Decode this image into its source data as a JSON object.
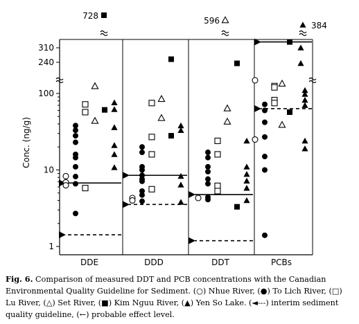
{
  "chart_data": {
    "type": "scatter",
    "ylabel": "Conc. (ng/g)",
    "yscale": "log",
    "ylim": [
      1,
      150
    ],
    "yticks": [
      "1",
      "10",
      "100"
    ],
    "upper_axis_ticks": [
      "240",
      "310"
    ],
    "categories": [
      "DDE",
      "DDD",
      "DDT",
      "PCBs"
    ],
    "series": [
      {
        "marker": "open-circle",
        "values": {
          "DDE": [
            8.3,
            6.9,
            6.3
          ],
          "DDD": [
            4.3,
            4.0
          ],
          "DDT": [
            4.3
          ],
          "PCBs": [
            160,
            25
          ]
        }
      },
      {
        "marker": "filled-circle",
        "values": {
          "DDE": [
            38,
            33,
            28,
            23,
            16,
            14.5,
            11,
            8.2,
            6.6,
            2.7
          ],
          "DDD": [
            20,
            17,
            11,
            10,
            8.5,
            7.6,
            7.1,
            5.3,
            4.7,
            3.9
          ],
          "DDT": [
            17,
            14.5,
            11,
            9.5,
            7.6,
            6.6,
            4.4,
            4.1
          ],
          "PCBs": [
            72,
            60,
            42,
            27,
            15,
            10,
            1.4
          ]
        }
      },
      {
        "marker": "open-square",
        "values": {
          "DDE": [
            72,
            57,
            5.8
          ],
          "DDD": [
            75,
            27,
            16,
            5.6
          ],
          "DDT": [
            24,
            16,
            6.2,
            5.3
          ],
          "PCBs": [
            125,
            120,
            82,
            75
          ]
        }
      },
      {
        "marker": "open-triangle",
        "values": {
          "DDE": [
            125,
            44
          ],
          "DDD": [
            85,
            48
          ],
          "DDT": [
            64,
            43
          ],
          "PCBs": [
            135,
            39
          ]
        }
      },
      {
        "marker": "filled-square",
        "values": {
          "DDE": [
            61
          ],
          "DDD": [
            28
          ],
          "DDT": [
            3.3
          ],
          "PCBs": [
            57
          ]
        }
      },
      {
        "marker": "filled-triangle",
        "values": {
          "DDE": [
            76,
            62,
            36,
            21,
            16,
            10.8
          ],
          "DDD": [
            38,
            33,
            8.3,
            6.4,
            3.8
          ],
          "DDT": [
            24,
            11,
            8.8,
            7.2,
            5.8,
            4.0
          ],
          "PCBs": [
            110,
            98,
            82,
            70,
            24,
            19
          ]
        }
      }
    ],
    "upper_points": [
      {
        "category": "DDD",
        "marker": "filled-square",
        "value": 255
      },
      {
        "category": "DDT",
        "marker": "filled-square",
        "value": 235
      },
      {
        "category": "PCBs",
        "marker": "filled-square",
        "value": 338
      },
      {
        "category": "PCBs",
        "marker": "filled-triangle",
        "value": 310
      },
      {
        "category": "PCBs",
        "marker": "filled-triangle",
        "value": 235
      }
    ],
    "offscale_labels": [
      {
        "category": "DDE",
        "marker": "filled-square",
        "label": "728"
      },
      {
        "category": "DDT",
        "marker": "open-triangle",
        "label": "596"
      },
      {
        "category": "PCBs",
        "marker": "filled-triangle",
        "label": "384"
      }
    ],
    "interim_sediment_quality_guideline": {
      "DDE": 1.42,
      "DDD": 3.54,
      "DDT": 1.19,
      "PCBs": 63.3
    },
    "probable_effect_level": {
      "DDE": 6.75,
      "DDD": 8.51,
      "DDT": 4.77,
      "PCBs": 338
    }
  },
  "caption": {
    "fig_label": "Fig. 6.",
    "text": "Comparison of measured DDT and PCB concentrations with the Canadian Environmental Quality Guideline for Sediment. (○) Nhue River, (●) To Lich River, (□) Lu River, (△) Set River, (■) Kim Nguu River, (▲) Yen So Lake. (◄---) interim sediment quality guideline, (←) probable effect level."
  }
}
